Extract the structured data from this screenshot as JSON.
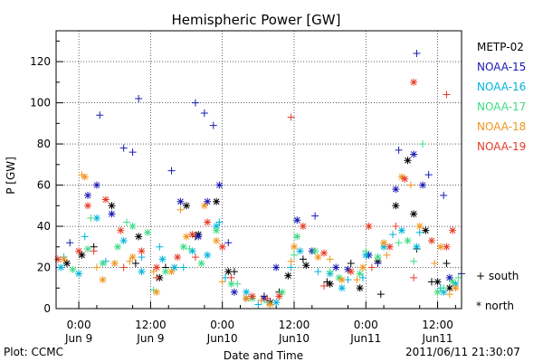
{
  "chart_data": {
    "type": "scatter",
    "title": "Hemispheric Power [GW]",
    "ylabel": "P [GW]",
    "xlabel": "Date and Time",
    "ylim": [
      0,
      135
    ],
    "yticks": [
      0,
      20,
      40,
      60,
      80,
      100,
      120
    ],
    "xlim_hours": [
      -3.8,
      64.0
    ],
    "xticks": [
      {
        "hour": 0,
        "time": "0:00",
        "date": "Jun 9"
      },
      {
        "hour": 12,
        "time": "12:00",
        "date": "Jun 9"
      },
      {
        "hour": 24,
        "time": "0:00",
        "date": "Jun10"
      },
      {
        "hour": 36,
        "time": "12:00",
        "date": "Jun10"
      },
      {
        "hour": 48,
        "time": "0:00",
        "date": "Jun11"
      },
      {
        "hour": 60,
        "time": "12:00",
        "date": "Jun11"
      }
    ],
    "marker_legend": {
      "south": "+ south",
      "north": "* north"
    },
    "series": [
      {
        "name": "METP-02",
        "color": "#000000",
        "south": [
          [
            2.5,
            30
          ],
          [
            9.5,
            22
          ],
          [
            14.5,
            20
          ],
          [
            19.5,
            35
          ],
          [
            26,
            18
          ],
          [
            31,
            6
          ],
          [
            33.5,
            8
          ],
          [
            37.5,
            24
          ],
          [
            41.5,
            13
          ],
          [
            45.5,
            22
          ],
          [
            50.5,
            7
          ],
          [
            56.5,
            29
          ],
          [
            59,
            13
          ],
          [
            61.5,
            22
          ]
        ],
        "north": [
          [
            -2,
            22
          ],
          [
            0.5,
            26
          ],
          [
            5.5,
            50
          ],
          [
            10,
            35
          ],
          [
            13.5,
            15
          ],
          [
            18,
            50
          ],
          [
            20,
            36
          ],
          [
            23,
            52
          ],
          [
            25,
            18
          ],
          [
            28,
            5
          ],
          [
            32,
            3
          ],
          [
            35,
            16
          ],
          [
            38,
            21
          ],
          [
            42,
            12
          ],
          [
            47,
            10
          ],
          [
            50,
            23
          ],
          [
            53,
            50
          ],
          [
            55,
            72
          ],
          [
            56,
            46
          ],
          [
            58,
            38
          ],
          [
            60,
            13
          ],
          [
            62,
            10
          ]
        ]
      },
      {
        "name": "NOAA-15",
        "color": "#1a1ab4",
        "south": [
          [
            -1.5,
            32
          ],
          [
            3.5,
            94
          ],
          [
            7.5,
            78
          ],
          [
            9,
            76
          ],
          [
            10,
            102
          ],
          [
            15.5,
            67
          ],
          [
            19.5,
            100
          ],
          [
            21,
            95
          ],
          [
            22.5,
            89
          ],
          [
            25,
            32
          ],
          [
            39.5,
            45
          ],
          [
            50,
            22
          ],
          [
            53.5,
            77
          ],
          [
            56.5,
            124
          ],
          [
            58.5,
            65
          ],
          [
            61,
            55
          ],
          [
            64,
            17
          ]
        ],
        "north": [
          [
            1.5,
            55
          ],
          [
            3,
            60
          ],
          [
            5.5,
            46
          ],
          [
            17,
            52
          ],
          [
            20,
            35
          ],
          [
            21.5,
            52
          ],
          [
            23.5,
            60
          ],
          [
            26,
            8
          ],
          [
            31,
            5
          ],
          [
            33,
            20
          ],
          [
            36.5,
            43
          ],
          [
            39,
            28
          ],
          [
            43,
            20
          ],
          [
            45,
            19
          ],
          [
            48.5,
            26
          ],
          [
            53,
            58
          ],
          [
            56,
            75
          ],
          [
            57.5,
            60
          ],
          [
            62,
            15
          ]
        ]
      },
      {
        "name": "NOAA-16",
        "color": "#00b4dc",
        "south": [
          [
            -2.5,
            25
          ],
          [
            1,
            35
          ],
          [
            4.5,
            23
          ],
          [
            10.5,
            25
          ],
          [
            13.5,
            30
          ],
          [
            17.5,
            20
          ],
          [
            23.5,
            42
          ],
          [
            24.5,
            15
          ],
          [
            30,
            2
          ],
          [
            35.5,
            20
          ],
          [
            40,
            18
          ],
          [
            45,
            14
          ],
          [
            47.5,
            15
          ],
          [
            52.5,
            36
          ],
          [
            57,
            37
          ],
          [
            60.5,
            10
          ]
        ],
        "north": [
          [
            -3,
            20
          ],
          [
            0,
            17
          ],
          [
            3,
            44
          ],
          [
            7.5,
            33
          ],
          [
            10.5,
            18
          ],
          [
            14,
            24
          ],
          [
            16,
            20
          ],
          [
            19,
            28
          ],
          [
            21.5,
            26
          ],
          [
            23,
            40
          ],
          [
            28,
            8
          ],
          [
            33,
            3
          ],
          [
            37,
            28
          ],
          [
            42,
            17
          ],
          [
            44,
            10
          ],
          [
            48,
            26
          ],
          [
            51,
            30
          ],
          [
            54,
            38
          ],
          [
            56.5,
            30
          ],
          [
            61,
            8
          ],
          [
            63,
            12
          ]
        ]
      },
      {
        "name": "NOAA-17",
        "color": "#3ddc84",
        "south": [
          [
            2,
            44
          ],
          [
            8,
            42
          ],
          [
            12.5,
            9
          ],
          [
            18.5,
            29
          ],
          [
            26.5,
            12
          ],
          [
            31.5,
            3
          ],
          [
            36,
            26
          ],
          [
            42,
            18
          ],
          [
            48,
            28
          ],
          [
            53.5,
            32
          ],
          [
            56,
            23
          ],
          [
            57.5,
            80
          ],
          [
            61,
            10
          ],
          [
            63.5,
            15
          ]
        ],
        "north": [
          [
            -1,
            19
          ],
          [
            1.5,
            29
          ],
          [
            4,
            22
          ],
          [
            6.5,
            30
          ],
          [
            9,
            40
          ],
          [
            11.5,
            37
          ],
          [
            14.5,
            18
          ],
          [
            17.5,
            30
          ],
          [
            20.5,
            22
          ],
          [
            23,
            38
          ],
          [
            25.5,
            12
          ],
          [
            29,
            5
          ],
          [
            34,
            8
          ],
          [
            36.5,
            35
          ],
          [
            39.5,
            28
          ],
          [
            43.5,
            15
          ],
          [
            47,
            17
          ],
          [
            50,
            25
          ],
          [
            55,
            33
          ],
          [
            60,
            8
          ],
          [
            62.5,
            13
          ]
        ]
      },
      {
        "name": "NOAA-18",
        "color": "#f0961e",
        "south": [
          [
            0.5,
            65
          ],
          [
            3,
            20
          ],
          [
            8.5,
            23
          ],
          [
            12.5,
            18
          ],
          [
            17,
            48
          ],
          [
            24,
            13
          ],
          [
            30.5,
            4
          ],
          [
            35.5,
            23
          ],
          [
            42,
            24
          ],
          [
            46.5,
            14
          ],
          [
            51.5,
            26
          ],
          [
            55.5,
            60
          ],
          [
            59.5,
            22
          ],
          [
            62,
            7
          ]
        ],
        "north": [
          [
            -2.5,
            24
          ],
          [
            1,
            64
          ],
          [
            4,
            14
          ],
          [
            6,
            22
          ],
          [
            9,
            25
          ],
          [
            13,
            8
          ],
          [
            15.5,
            18
          ],
          [
            18,
            35
          ],
          [
            21,
            50
          ],
          [
            23,
            33
          ],
          [
            28,
            5
          ],
          [
            32,
            2
          ],
          [
            36,
            30
          ],
          [
            40,
            25
          ],
          [
            44,
            14
          ],
          [
            47.5,
            20
          ],
          [
            51,
            32
          ],
          [
            54,
            64
          ],
          [
            57,
            40
          ],
          [
            60.5,
            30
          ],
          [
            63,
            10
          ]
        ]
      },
      {
        "name": "NOAA-19",
        "color": "#e63c28",
        "south": [
          [
            2.5,
            28
          ],
          [
            7.5,
            20
          ],
          [
            13,
            15
          ],
          [
            19.5,
            25
          ],
          [
            25.5,
            15
          ],
          [
            31.5,
            5
          ],
          [
            35.5,
            93
          ],
          [
            41,
            11
          ],
          [
            49,
            20
          ],
          [
            53,
            40
          ],
          [
            56,
            15
          ],
          [
            61.5,
            104
          ]
        ],
        "north": [
          [
            -3.5,
            24
          ],
          [
            0,
            28
          ],
          [
            1.5,
            50
          ],
          [
            4.5,
            53
          ],
          [
            7,
            38
          ],
          [
            10.5,
            28
          ],
          [
            13,
            20
          ],
          [
            16.5,
            25
          ],
          [
            19,
            36
          ],
          [
            21.5,
            42
          ],
          [
            24,
            30
          ],
          [
            29,
            6
          ],
          [
            33.5,
            6
          ],
          [
            37.5,
            40
          ],
          [
            41,
            27
          ],
          [
            45.5,
            18
          ],
          [
            48.5,
            40
          ],
          [
            52,
            30
          ],
          [
            54.5,
            63
          ],
          [
            56,
            110
          ],
          [
            59,
            33
          ],
          [
            61.5,
            30
          ],
          [
            62.5,
            38
          ]
        ]
      }
    ]
  },
  "footer": {
    "plot_credit": "Plot: CCMC",
    "timestamp": "2011/06/11 21:30:07"
  }
}
